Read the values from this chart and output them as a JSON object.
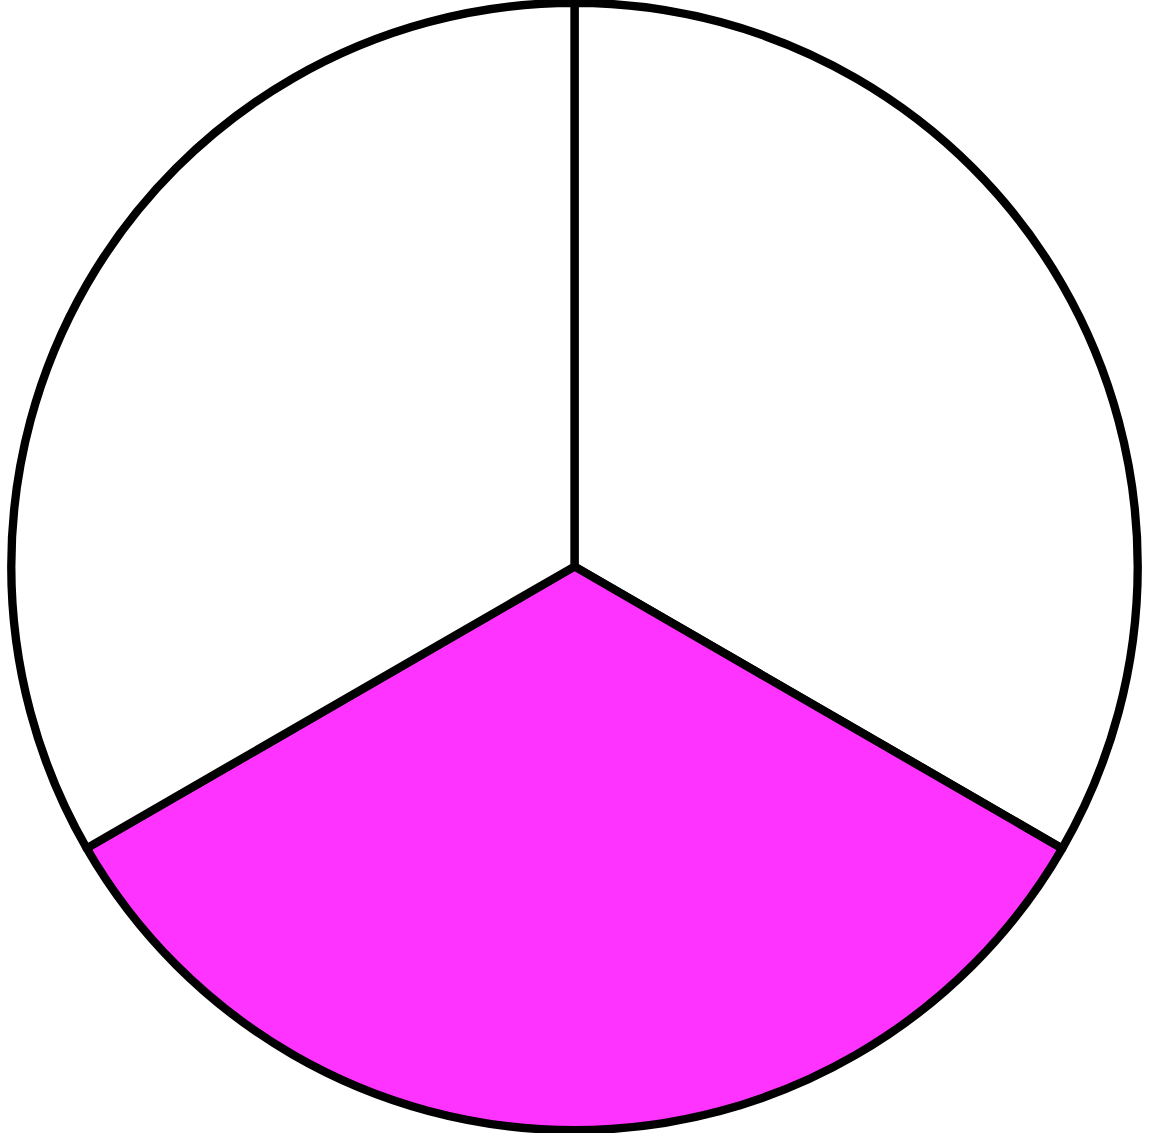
{
  "chart_data": {
    "type": "pie",
    "categories": [
      null,
      null,
      null
    ],
    "values": [
      33.34,
      33.33,
      33.33
    ],
    "colors": [
      "#ffffff",
      "#ff33ff",
      "#ffffff"
    ]
  }
}
